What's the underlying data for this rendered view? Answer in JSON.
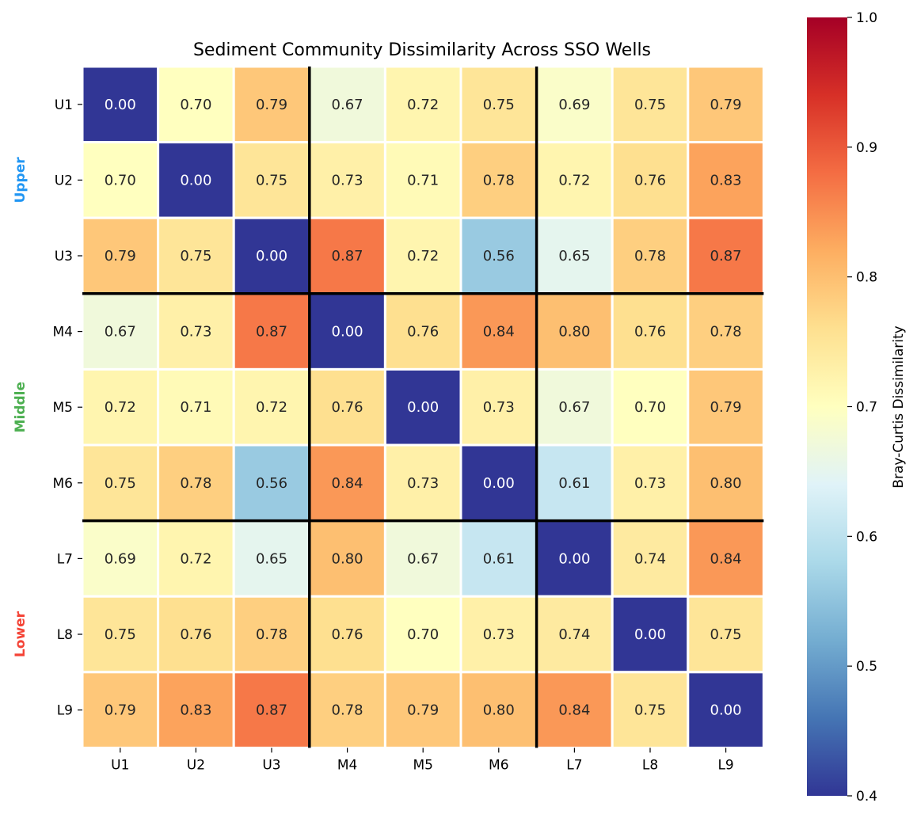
{
  "chart_data": {
    "type": "heatmap",
    "title": "Sediment Community Dissimilarity Across SSO Wells",
    "row_labels": [
      "U1",
      "U2",
      "U3",
      "M4",
      "M5",
      "M6",
      "L7",
      "L8",
      "L9"
    ],
    "col_labels": [
      "U1",
      "U2",
      "U3",
      "M4",
      "M5",
      "M6",
      "L7",
      "L8",
      "L9"
    ],
    "values": [
      [
        0.0,
        0.7,
        0.79,
        0.67,
        0.72,
        0.75,
        0.69,
        0.75,
        0.79
      ],
      [
        0.7,
        0.0,
        0.75,
        0.73,
        0.71,
        0.78,
        0.72,
        0.76,
        0.83
      ],
      [
        0.79,
        0.75,
        0.0,
        0.87,
        0.72,
        0.56,
        0.65,
        0.78,
        0.87
      ],
      [
        0.67,
        0.73,
        0.87,
        0.0,
        0.76,
        0.84,
        0.8,
        0.76,
        0.78
      ],
      [
        0.72,
        0.71,
        0.72,
        0.76,
        0.0,
        0.73,
        0.67,
        0.7,
        0.79
      ],
      [
        0.75,
        0.78,
        0.56,
        0.84,
        0.73,
        0.0,
        0.61,
        0.73,
        0.8
      ],
      [
        0.69,
        0.72,
        0.65,
        0.8,
        0.67,
        0.61,
        0.0,
        0.74,
        0.84
      ],
      [
        0.75,
        0.76,
        0.78,
        0.76,
        0.7,
        0.73,
        0.74,
        0.0,
        0.75
      ],
      [
        0.79,
        0.83,
        0.87,
        0.78,
        0.79,
        0.8,
        0.84,
        0.75,
        0.0
      ]
    ],
    "groups": [
      {
        "name": "Upper",
        "color": "#2196f3",
        "rows": [
          0,
          2
        ]
      },
      {
        "name": "Middle",
        "color": "#4caf50",
        "rows": [
          3,
          5
        ]
      },
      {
        "name": "Lower",
        "color": "#f44336",
        "rows": [
          6,
          8
        ]
      }
    ],
    "colormap": "RdYlBu_r",
    "vmin": 0.4,
    "vmax": 1.0,
    "colorbar_label": "Bray-Curtis Dissimilarity",
    "colorbar_ticks": [
      "0.4",
      "0.5",
      "0.6",
      "0.7",
      "0.8",
      "0.9",
      "1.0"
    ]
  }
}
